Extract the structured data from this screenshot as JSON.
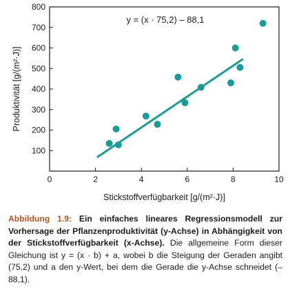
{
  "chart_data": {
    "type": "scatter",
    "xlabel": "Stickstoffverfügbarkeit [g/(m²·J)]",
    "ylabel": "Produktivität [g/(m²·J)]",
    "xlim": [
      0,
      10
    ],
    "ylim": [
      0,
      800
    ],
    "xticks": [
      0,
      2,
      4,
      6,
      8,
      10
    ],
    "yticks": [
      100,
      200,
      300,
      400,
      500,
      600,
      700,
      800
    ],
    "grid": false,
    "points": [
      {
        "x": 2.6,
        "y": 135
      },
      {
        "x": 2.9,
        "y": 205
      },
      {
        "x": 3.0,
        "y": 128
      },
      {
        "x": 4.2,
        "y": 268
      },
      {
        "x": 4.7,
        "y": 228
      },
      {
        "x": 5.6,
        "y": 458
      },
      {
        "x": 5.9,
        "y": 333
      },
      {
        "x": 6.6,
        "y": 408
      },
      {
        "x": 7.9,
        "y": 430
      },
      {
        "x": 8.1,
        "y": 600
      },
      {
        "x": 8.3,
        "y": 505
      },
      {
        "x": 9.3,
        "y": 720
      }
    ],
    "regression": {
      "slope": 75.2,
      "intercept": -88.1,
      "x_range": [
        2.1,
        8.4
      ]
    },
    "annotation": "y = (x · 75,2) – 88,1",
    "colors": {
      "points": "#1a9b97",
      "line": "#1a9b97",
      "axes": "#1a1a1a"
    }
  },
  "caption": {
    "label": "Abbildung 1.9:",
    "bold_text": "Ein einfaches lineares Regressionsmodell zur Vorhersage der Pflanzenproduktivität (y-Achse) in Abhängigkeit von der Stickstoffverfügbarkeit (x-Achse).",
    "text": "Die allgemeine Form dieser Gleichung ist y = (x · b) + a, wobei b die Steigung der Geraden angibt (75,2) und a den y-Wert, bei dem die Gerade die y-Achse schneidet (–88,1)."
  }
}
